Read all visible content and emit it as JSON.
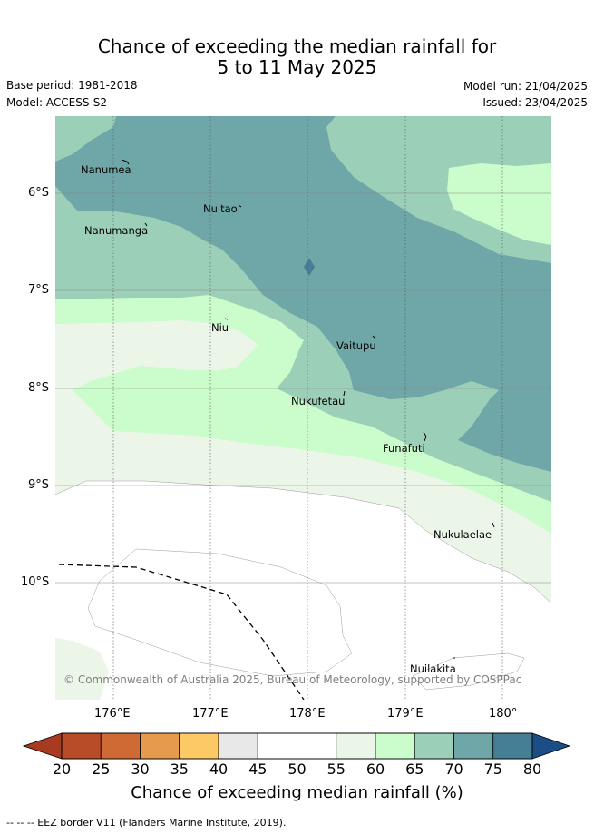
{
  "title": {
    "line1": "Chance of exceeding the median rainfall for",
    "line2": "5 to 11 May 2025"
  },
  "meta": {
    "base_period": "Base period: 1981-2018",
    "model": "Model: ACCESS-S2",
    "model_run": "Model run: 21/04/2025",
    "issued": "Issued: 23/04/2025"
  },
  "map": {
    "longitude_labels": [
      "176°E",
      "177°E",
      "178°E",
      "179°E",
      "180°"
    ],
    "latitude_labels": [
      "6°S",
      "7°S",
      "8°S",
      "9°S",
      "10°S"
    ],
    "places": [
      "Nanumea",
      "Nuitao",
      "Nanumanga",
      "Niu",
      "Vaitupu",
      "Nukufetau",
      "Funafuti",
      "Nukulaelae",
      "Nuilakita"
    ],
    "copyright": "© Commonwealth of Australia 2025, Bureau of Meteorology, supported by COSPPac",
    "eez_line": "dashed"
  },
  "colorbar": {
    "ticks": [
      "20",
      "25",
      "30",
      "35",
      "40",
      "45",
      "50",
      "55",
      "60",
      "65",
      "70",
      "75",
      "80"
    ],
    "label": "Chance of exceeding median rainfall (%)",
    "colors": {
      "below_20": "#a83a22",
      "20-25": "#b84c28",
      "25-30": "#d06a35",
      "30-35": "#e69a4d",
      "35-40": "#fdc967",
      "40-45": "#e8e8e8",
      "45-50": "#ffffff",
      "50-55": "#ffffff",
      "55-60": "#ebf6e9",
      "60-65": "#cbfccb",
      "65-70": "#9ccfb8",
      "70-75": "#6fa6a8",
      "75-80": "#467e96",
      "above_80": "#1b4e86"
    }
  },
  "footnote": "-- -- -- EEZ border V11 (Flanders Marine Institute, 2019)."
}
